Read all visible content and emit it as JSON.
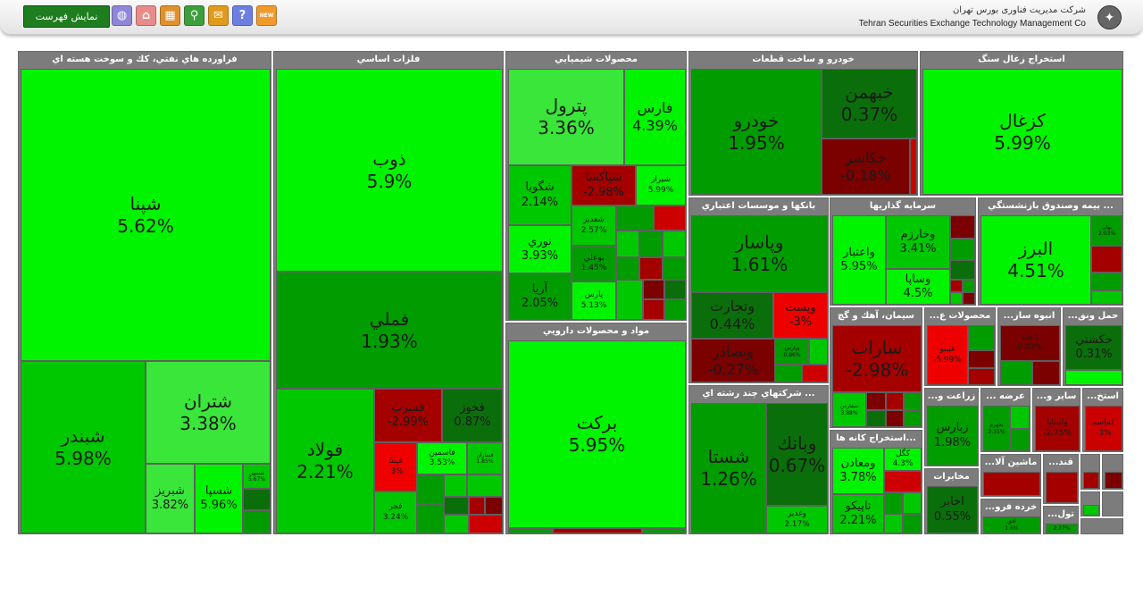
{
  "toolbar": {
    "list_button": "نمایش فهرست",
    "icons": [
      {
        "name": "globe-icon",
        "glyph": "◍",
        "color": "#8f86d9"
      },
      {
        "name": "home-icon",
        "glyph": "⌂",
        "color": "#e78b8b"
      },
      {
        "name": "table-icon",
        "glyph": "▦",
        "color": "#e0912b"
      },
      {
        "name": "search-icon",
        "glyph": "⚲",
        "color": "#3e9e3e"
      },
      {
        "name": "comment-icon",
        "glyph": "✉",
        "color": "#e09a1d"
      },
      {
        "name": "help-icon",
        "glyph": "?",
        "color": "#6d7fe0"
      },
      {
        "name": "new-icon",
        "glyph": "NEW",
        "color": "#f19a2b"
      }
    ]
  },
  "brand": {
    "name_fa": "شرکت مديريت فناوری بورس تهران",
    "name_en": "Tehran Securities Exchange Technology Management Co"
  },
  "sectors": {
    "s1": "فراورده هاي نفتي، كك و سوخت هسته اي",
    "s2": "فلزات اساسي",
    "s3": "محصولات شيميايي",
    "s4": "خودرو و ساخت قطعات",
    "s5": "استخراج زغال سنگ",
    "s6": "مواد و محصولات دارويي",
    "s7": "بانكها و موسسات اعتباري",
    "s8": "سرمايه گذاريها",
    "s9": "... بيمه وصندوق بازنشستگي",
    "s10": "... شركتهاي چند رشته اي",
    "s11": "سيمان، آهك و گچ",
    "s12": "محصولات ع...",
    "s13": "انبوه ساز...",
    "s14": "حمل ونق...",
    "s15": "...استخراج كانه ها",
    "s16": "زراعت و...",
    "s17": "عرضه ...",
    "s18": "ساير و...",
    "s19": "استخ...",
    "s20": "مخابرات",
    "s21": "ماشين آلا...",
    "s22": "قند...",
    "s23": "خرده فرو...",
    "s24": "تول..."
  },
  "stocks": {
    "shapna": {
      "name": "شپنا",
      "pct": "5.62%"
    },
    "shabandar": {
      "name": "شبندر",
      "pct": "5.98%"
    },
    "shtran": {
      "name": "شتران",
      "pct": "3.38%"
    },
    "shabriz": {
      "name": "شبريز",
      "pct": "3.82%"
    },
    "shasha": {
      "name": "شسپا",
      "pct": "5.96%"
    },
    "shsahn": {
      "name": "شسهن",
      "pct": "5.67%"
    },
    "zob": {
      "name": "ذوب",
      "pct": "5.9%"
    },
    "fameli": {
      "name": "فملي",
      "pct": "1.93%"
    },
    "foolad": {
      "name": "فولاد",
      "pct": "2.21%"
    },
    "fasrb": {
      "name": "فسرب",
      "pct": "-2.99%"
    },
    "fkhoz": {
      "name": "فخوز",
      "pct": "0.87%"
    },
    "fasmin": {
      "name": "فاسمين",
      "pct": "3.53%"
    },
    "fsazan": {
      "name": "فسازان",
      "pct": "1.85%"
    },
    "fajr": {
      "name": "فجر",
      "pct": "3.24%"
    },
    "fpna": {
      "name": "فپنتا",
      "pct": "-3%"
    },
    "petrol": {
      "name": "پترول",
      "pct": "3.36%"
    },
    "fars": {
      "name": "فارس",
      "pct": "4.39%"
    },
    "shgooya": {
      "name": "شگويا",
      "pct": "2.14%"
    },
    "shiraz": {
      "name": "شيراز",
      "pct": "5.99%"
    },
    "shpaksa": {
      "name": "شپاكسا",
      "pct": "-2.98%"
    },
    "nori": {
      "name": "نوري",
      "pct": "3.93%"
    },
    "shghadir": {
      "name": "شغدير",
      "pct": "2.57%"
    },
    "bomali": {
      "name": "بوعلي",
      "pct": "1.45%"
    },
    "arya": {
      "name": "آريا",
      "pct": "2.05%"
    },
    "pars": {
      "name": "پارس",
      "pct": "5.13%"
    },
    "khodro": {
      "name": "خودرو",
      "pct": "1.95%"
    },
    "khbahman": {
      "name": "خبهمن",
      "pct": "0.37%"
    },
    "khkasar": {
      "name": "خكاسر",
      "pct": "-0.18%"
    },
    "kazghal": {
      "name": "كزغال",
      "pct": "5.99%"
    },
    "barkat": {
      "name": "بركت",
      "pct": "5.95%"
    },
    "vpasar": {
      "name": "وپاسار",
      "pct": "1.61%"
    },
    "vtejarat": {
      "name": "وتجارت",
      "pct": "0.44%"
    },
    "vbsader": {
      "name": "وبصادر",
      "pct": "-0.27%"
    },
    "vpost": {
      "name": "وپست",
      "pct": "-3%"
    },
    "vparsian": {
      "name": "وپارس",
      "pct": "0.86%"
    },
    "vetebar": {
      "name": "واعتبار",
      "pct": "5.95%"
    },
    "vkharazm": {
      "name": "وخارزم",
      "pct": "3.41%"
    },
    "vsapa": {
      "name": "وساپا",
      "pct": "4.5%"
    },
    "alborz": {
      "name": "البرز",
      "pct": "4.51%"
    },
    "bahen": {
      "name": "بهان",
      "pct": "2.03%"
    },
    "shasta": {
      "name": "شستا",
      "pct": "1.26%"
    },
    "vbank": {
      "name": "وبانك",
      "pct": "0.67%"
    },
    "vghadir": {
      "name": "وغدير",
      "pct": "2.17%"
    },
    "sarab": {
      "name": "ساراب",
      "pct": "-2.98%"
    },
    "sefars": {
      "name": "سفارس",
      "pct": "3.88%"
    },
    "ghebino": {
      "name": "غبينو",
      "pct": "-5.99%"
    },
    "thakht": {
      "name": "ثاخت",
      "pct": "0.03%"
    },
    "hakashti": {
      "name": "حكشتي",
      "pct": "0.31%"
    },
    "vmaaden": {
      "name": "ومعادن",
      "pct": "3.78%"
    },
    "tapico": {
      "name": "تاپيكو",
      "pct": "2.21%"
    },
    "kgol": {
      "name": "كگل",
      "pct": "4.3%"
    },
    "zbaras": {
      "name": "زبارس",
      "pct": "1.98%"
    },
    "akhaber": {
      "name": "اخابر",
      "pct": "0.55%"
    },
    "vsina": {
      "name": "ولساپا",
      "pct": "-2.75%"
    },
    "kamasa": {
      "name": "كماسه",
      "pct": "-3%"
    },
    "bjahrom": {
      "name": "بجهرم",
      "pct": "2.31%"
    },
    "afagh": {
      "name": "افق",
      "pct": "1.6%"
    },
    "toul": {
      "name": "تول",
      "pct": "2.27%"
    }
  }
}
